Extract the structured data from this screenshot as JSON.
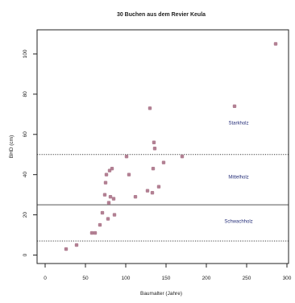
{
  "chart_data": {
    "type": "scatter",
    "title": "30 Buchen aus dem Revier Keula",
    "xlabel": "Baumalter (Jahre)",
    "ylabel": "BHD (cm)",
    "xlim": [
      0,
      300
    ],
    "ylim": [
      -3,
      110
    ],
    "xticks": [
      0,
      50,
      100,
      150,
      200,
      250,
      300
    ],
    "yticks": [
      0,
      20,
      40,
      60,
      80,
      100
    ],
    "grid": false,
    "colors": {
      "points": "#a56a80",
      "lines": "#555555",
      "labels": "#27307a",
      "axis": "#222222"
    },
    "hlines": [
      {
        "y": 7,
        "style": "dotted"
      },
      {
        "y": 25,
        "style": "solid"
      },
      {
        "y": 50,
        "style": "dotted"
      }
    ],
    "annotations": [
      {
        "text": "Starkholz",
        "x": 200,
        "y": 65
      },
      {
        "text": "Mittelholz",
        "x": 200,
        "y": 38
      },
      {
        "text": "Schwachholz",
        "x": 200,
        "y": 16
      }
    ],
    "points": [
      {
        "x": 26,
        "y": 3
      },
      {
        "x": 39,
        "y": 5
      },
      {
        "x": 58,
        "y": 11
      },
      {
        "x": 62,
        "y": 11
      },
      {
        "x": 68,
        "y": 15
      },
      {
        "x": 71,
        "y": 21
      },
      {
        "x": 74,
        "y": 30
      },
      {
        "x": 75,
        "y": 36
      },
      {
        "x": 76,
        "y": 40
      },
      {
        "x": 78,
        "y": 18
      },
      {
        "x": 79,
        "y": 26
      },
      {
        "x": 80,
        "y": 42
      },
      {
        "x": 81,
        "y": 29
      },
      {
        "x": 83,
        "y": 43
      },
      {
        "x": 85,
        "y": 28
      },
      {
        "x": 86,
        "y": 20
      },
      {
        "x": 101,
        "y": 49
      },
      {
        "x": 104,
        "y": 40
      },
      {
        "x": 112,
        "y": 29
      },
      {
        "x": 127,
        "y": 32
      },
      {
        "x": 130,
        "y": 73
      },
      {
        "x": 133,
        "y": 31
      },
      {
        "x": 134,
        "y": 43
      },
      {
        "x": 135,
        "y": 56
      },
      {
        "x": 136,
        "y": 53
      },
      {
        "x": 141,
        "y": 34
      },
      {
        "x": 147,
        "y": 46
      },
      {
        "x": 170,
        "y": 49
      },
      {
        "x": 235,
        "y": 74
      },
      {
        "x": 286,
        "y": 105
      }
    ]
  }
}
